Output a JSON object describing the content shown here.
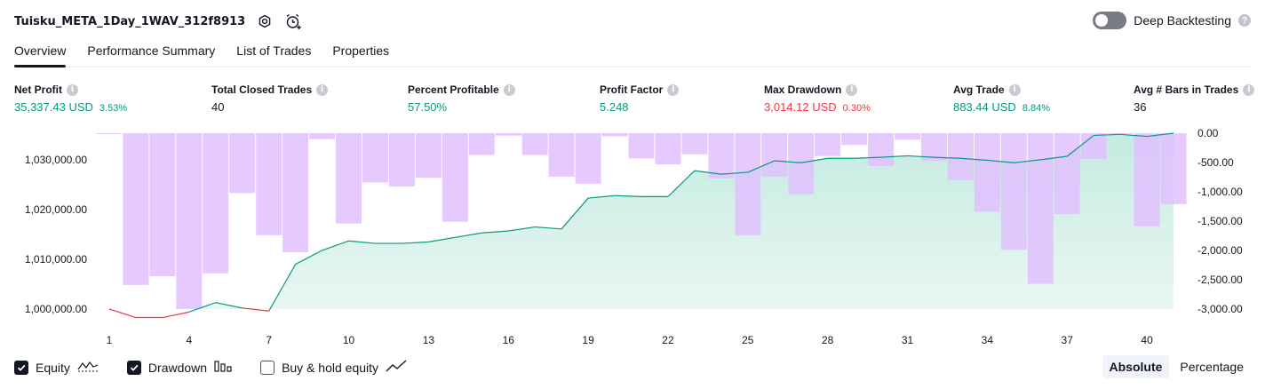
{
  "header": {
    "strategy_name": "Tuisku_META_1Day_1WAV_312f8913",
    "deep_backtesting_label": "Deep Backtesting",
    "settings_icon": "gear-icon",
    "alert_icon": "alarm-clock-plus-icon"
  },
  "tabs": [
    {
      "label": "Overview",
      "active": true
    },
    {
      "label": "Performance Summary",
      "active": false
    },
    {
      "label": "List of Trades",
      "active": false
    },
    {
      "label": "Properties",
      "active": false
    }
  ],
  "metrics": {
    "net_profit": {
      "label": "Net Profit",
      "value": "35,337.43 USD",
      "pct": "3.53%"
    },
    "total_closed_trades": {
      "label": "Total Closed Trades",
      "value": "40"
    },
    "percent_profitable": {
      "label": "Percent Profitable",
      "value": "57.50%"
    },
    "profit_factor": {
      "label": "Profit Factor",
      "value": "5.248"
    },
    "max_drawdown": {
      "label": "Max Drawdown",
      "value": "3,014.12 USD",
      "pct": "0.30%"
    },
    "avg_trade": {
      "label": "Avg Trade",
      "value": "883.44 USD",
      "pct": "8.84%"
    },
    "avg_bars": {
      "label": "Avg # Bars in Trades",
      "value": "36"
    }
  },
  "legend": {
    "equity": "Equity",
    "drawdown": "Drawdown",
    "buy_hold": "Buy & hold equity"
  },
  "mode": {
    "absolute": "Absolute",
    "percentage": "Percentage"
  },
  "colors": {
    "profit": "#089981",
    "loss": "#f23645",
    "drawdown_bar": "#e1bfff",
    "equity_fill": "#d2efe7"
  },
  "chart_data": {
    "type": "line+bar",
    "x_ticks": [
      1,
      4,
      7,
      10,
      13,
      16,
      19,
      22,
      25,
      28,
      31,
      34,
      37,
      40
    ],
    "left_axis": {
      "ticks": [
        "1,000,000.00",
        "1,010,000.00",
        "1,020,000.00",
        "1,030,000.00"
      ],
      "tick_values": [
        1000000,
        1010000,
        1020000,
        1030000
      ],
      "range": [
        1000000,
        1035337
      ]
    },
    "right_axis": {
      "ticks": [
        "0.00",
        "-500.00",
        "-1,000.00",
        "-1,500.00",
        "-2,000.00",
        "-2,500.00",
        "-3,000.00"
      ],
      "tick_values": [
        0,
        -500,
        -1000,
        -1500,
        -2000,
        -2500,
        -3000
      ],
      "range": [
        -3000,
        0
      ]
    },
    "series": [
      {
        "name": "Equity",
        "type": "line",
        "x": [
          1,
          2,
          3,
          4,
          5,
          6,
          7,
          8,
          9,
          10,
          11,
          12,
          13,
          14,
          15,
          16,
          17,
          18,
          19,
          20,
          21,
          22,
          23,
          24,
          25,
          26,
          27,
          28,
          29,
          30,
          31,
          32,
          33,
          34,
          35,
          36,
          37,
          38,
          39,
          40,
          41
        ],
        "values": [
          1000000,
          998300,
          998300,
          999400,
          1001300,
          1000200,
          999600,
          1009000,
          1011800,
          1013700,
          1013200,
          1013200,
          1013500,
          1014400,
          1015300,
          1015700,
          1016500,
          1016100,
          1022300,
          1022800,
          1022600,
          1022600,
          1027800,
          1027100,
          1027500,
          1029800,
          1029400,
          1030300,
          1030300,
          1030500,
          1030800,
          1030500,
          1030300,
          1029900,
          1029400,
          1030000,
          1030700,
          1034900,
          1035100,
          1034700,
          1035337
        ]
      },
      {
        "name": "Drawdown",
        "type": "bar",
        "x": [
          1,
          2,
          3,
          4,
          5,
          6,
          7,
          8,
          9,
          10,
          11,
          12,
          13,
          14,
          15,
          16,
          17,
          18,
          19,
          20,
          21,
          22,
          23,
          24,
          25,
          26,
          27,
          28,
          29,
          30,
          31,
          32,
          33,
          34,
          35,
          36,
          37,
          38,
          39,
          40,
          41
        ],
        "values": [
          -10,
          -2590,
          -2440,
          -3000,
          -2390,
          -1020,
          -1740,
          -2030,
          -100,
          -1540,
          -840,
          -910,
          -760,
          -1510,
          -370,
          -40,
          -370,
          -740,
          -860,
          -50,
          -430,
          -530,
          -360,
          -770,
          -1740,
          -740,
          -1040,
          -390,
          -200,
          -560,
          -110,
          -470,
          -800,
          -1340,
          -1990,
          -2570,
          -1380,
          -440,
          0,
          -1590,
          -1210
        ]
      }
    ]
  }
}
